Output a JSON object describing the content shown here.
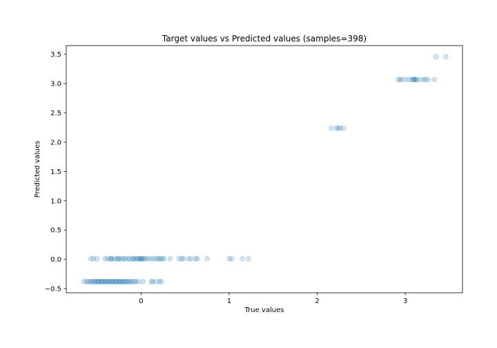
{
  "chart_data": {
    "type": "scatter",
    "title": "Target values vs Predicted values (samples=398)",
    "xlabel": "True values",
    "ylabel": "Predicted values",
    "xlim": [
      -0.85,
      3.65
    ],
    "ylim": [
      -0.57,
      3.65
    ],
    "xticks": [
      0,
      1,
      2,
      3
    ],
    "yticks": [
      -0.5,
      0.0,
      0.5,
      1.0,
      1.5,
      2.0,
      2.5,
      3.0,
      3.5
    ],
    "xtick_labels": [
      "0",
      "1",
      "2",
      "3"
    ],
    "ytick_labels": [
      "−0.5",
      "0.0",
      "0.5",
      "1.0",
      "1.5",
      "2.0",
      "2.5",
      "3.0",
      "3.5"
    ],
    "grid": false,
    "marker_color": "#1f77b4",
    "marker_alpha": 0.2,
    "series": [
      {
        "points": [
          [
            -0.65,
            -0.38
          ],
          [
            -0.62,
            -0.38
          ],
          [
            -0.6,
            -0.38
          ],
          [
            -0.58,
            -0.38
          ],
          [
            -0.56,
            -0.38
          ],
          [
            -0.55,
            -0.38
          ],
          [
            -0.53,
            -0.38
          ],
          [
            -0.52,
            -0.38
          ],
          [
            -0.5,
            -0.38
          ],
          [
            -0.49,
            -0.38
          ],
          [
            -0.48,
            -0.38
          ],
          [
            -0.46,
            -0.38
          ],
          [
            -0.45,
            -0.38
          ],
          [
            -0.44,
            -0.38
          ],
          [
            -0.42,
            -0.38
          ],
          [
            -0.41,
            -0.38
          ],
          [
            -0.4,
            -0.38
          ],
          [
            -0.38,
            -0.38
          ],
          [
            -0.37,
            -0.38
          ],
          [
            -0.36,
            -0.38
          ],
          [
            -0.34,
            -0.38
          ],
          [
            -0.33,
            -0.38
          ],
          [
            -0.32,
            -0.38
          ],
          [
            -0.3,
            -0.38
          ],
          [
            -0.29,
            -0.38
          ],
          [
            -0.28,
            -0.38
          ],
          [
            -0.26,
            -0.38
          ],
          [
            -0.25,
            -0.38
          ],
          [
            -0.24,
            -0.38
          ],
          [
            -0.22,
            -0.38
          ],
          [
            -0.21,
            -0.38
          ],
          [
            -0.2,
            -0.38
          ],
          [
            -0.18,
            -0.38
          ],
          [
            -0.17,
            -0.38
          ],
          [
            -0.15,
            -0.38
          ],
          [
            -0.14,
            -0.38
          ],
          [
            -0.12,
            -0.38
          ],
          [
            -0.1,
            -0.38
          ],
          [
            -0.08,
            -0.38
          ],
          [
            -0.06,
            -0.38
          ],
          [
            -0.03,
            -0.38
          ],
          [
            0.02,
            -0.38
          ],
          [
            0.12,
            -0.38
          ],
          [
            0.13,
            -0.38
          ],
          [
            0.17,
            -0.38
          ],
          [
            0.21,
            -0.38
          ],
          [
            0.23,
            -0.38
          ],
          [
            -0.57,
            0.01
          ],
          [
            -0.54,
            0.01
          ],
          [
            -0.5,
            0.01
          ],
          [
            -0.41,
            0.01
          ],
          [
            -0.38,
            0.01
          ],
          [
            -0.35,
            0.01
          ],
          [
            -0.34,
            0.01
          ],
          [
            -0.33,
            0.01
          ],
          [
            -0.3,
            0.01
          ],
          [
            -0.27,
            0.01
          ],
          [
            -0.26,
            0.01
          ],
          [
            -0.25,
            0.01
          ],
          [
            -0.22,
            0.01
          ],
          [
            -0.2,
            0.01
          ],
          [
            -0.18,
            0.01
          ],
          [
            -0.15,
            0.01
          ],
          [
            -0.13,
            0.01
          ],
          [
            -0.1,
            0.01
          ],
          [
            -0.09,
            0.01
          ],
          [
            -0.07,
            0.01
          ],
          [
            -0.05,
            0.01
          ],
          [
            -0.04,
            0.01
          ],
          [
            -0.02,
            0.01
          ],
          [
            -0.01,
            0.01
          ],
          [
            0.0,
            0.01
          ],
          [
            0.01,
            0.01
          ],
          [
            0.02,
            0.01
          ],
          [
            0.04,
            0.01
          ],
          [
            0.06,
            0.01
          ],
          [
            0.09,
            0.01
          ],
          [
            0.12,
            0.01
          ],
          [
            0.15,
            0.01
          ],
          [
            0.18,
            0.01
          ],
          [
            0.2,
            0.01
          ],
          [
            0.22,
            0.01
          ],
          [
            0.24,
            0.01
          ],
          [
            0.26,
            0.01
          ],
          [
            0.33,
            0.01
          ],
          [
            0.43,
            0.01
          ],
          [
            0.46,
            0.01
          ],
          [
            0.48,
            0.01
          ],
          [
            0.54,
            0.01
          ],
          [
            0.57,
            0.01
          ],
          [
            0.62,
            0.01
          ],
          [
            0.64,
            0.01
          ],
          [
            0.75,
            0.01
          ],
          [
            1.0,
            0.01
          ],
          [
            1.03,
            0.01
          ],
          [
            1.15,
            0.01
          ],
          [
            1.22,
            0.01
          ],
          [
            2.16,
            2.24
          ],
          [
            2.22,
            2.24
          ],
          [
            2.24,
            2.24
          ],
          [
            2.26,
            2.24
          ],
          [
            2.3,
            2.24
          ],
          [
            2.92,
            3.07
          ],
          [
            2.94,
            3.07
          ],
          [
            2.96,
            3.07
          ],
          [
            3.0,
            3.07
          ],
          [
            3.04,
            3.07
          ],
          [
            3.07,
            3.07
          ],
          [
            3.09,
            3.07
          ],
          [
            3.1,
            3.07
          ],
          [
            3.11,
            3.07
          ],
          [
            3.12,
            3.07
          ],
          [
            3.13,
            3.07
          ],
          [
            3.17,
            3.07
          ],
          [
            3.21,
            3.07
          ],
          [
            3.23,
            3.07
          ],
          [
            3.26,
            3.07
          ],
          [
            3.33,
            3.07
          ],
          [
            3.35,
            3.46
          ],
          [
            3.46,
            3.46
          ]
        ]
      }
    ]
  }
}
